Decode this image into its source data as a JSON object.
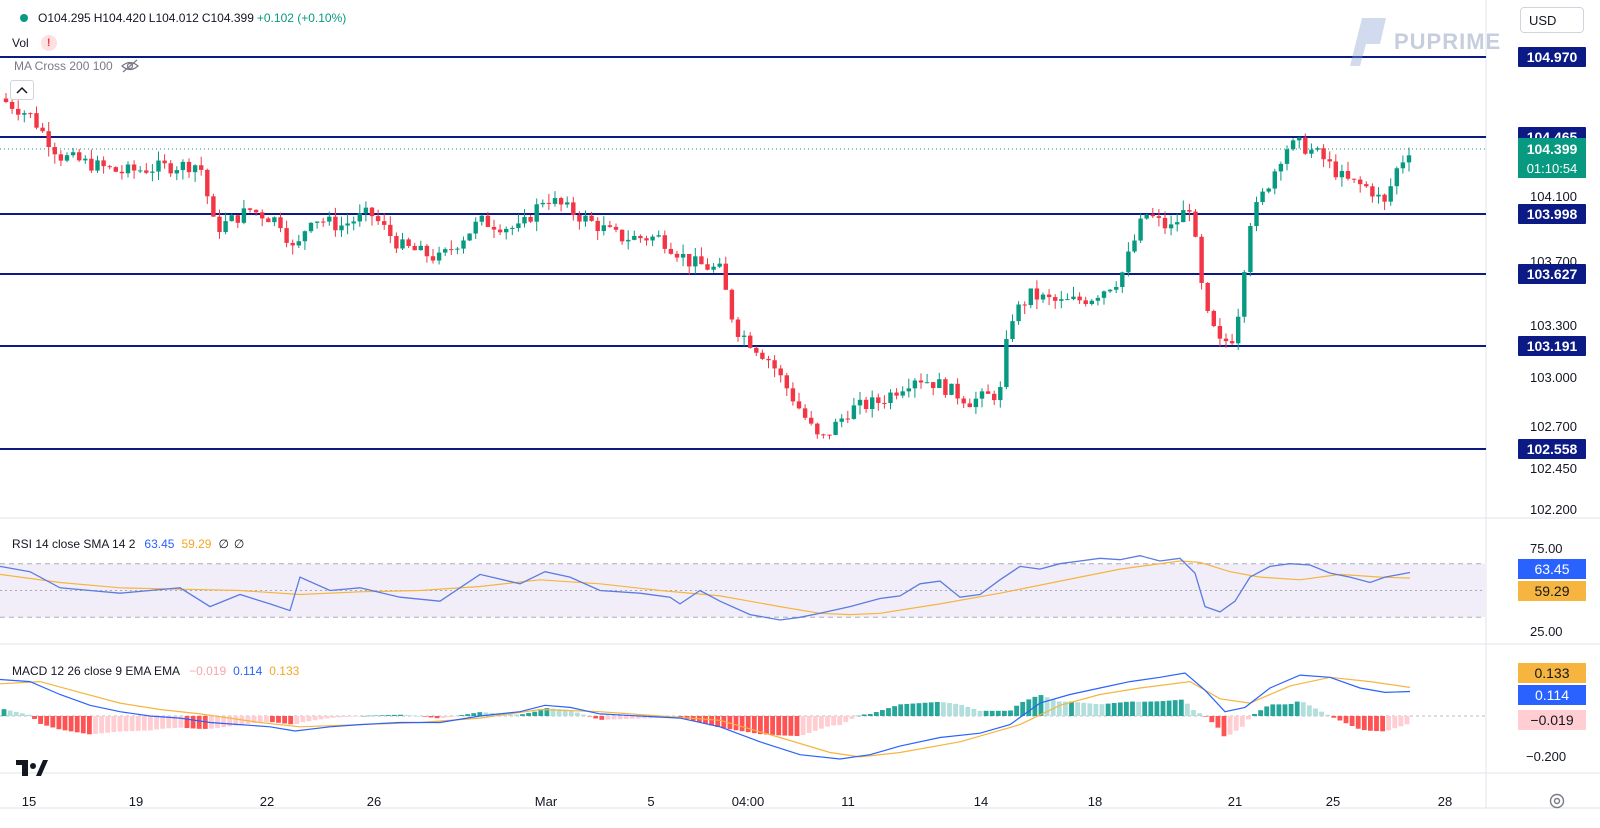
{
  "symbol_legend": {
    "open": "O104.295",
    "high": "H104.420",
    "low": "L104.012",
    "close": "C104.399",
    "change": "+0.102 (+0.10%)"
  },
  "vol_label": "Vol",
  "ma_label": "MA Cross 200 100",
  "rsi_legend": {
    "label": "RSI 14 close SMA 14 2",
    "rsi": "63.45",
    "sma": "59.29",
    "extra1": "∅",
    "extra2": "∅"
  },
  "macd_legend": {
    "label": "MACD 12 26 close 9 EMA EMA",
    "hist": "−0.019",
    "macd": "0.114",
    "signal": "0.133"
  },
  "currency": "USD",
  "watermark": "PUPRIME",
  "colors": {
    "up": "#089981",
    "down": "#f23645",
    "level_line": "#0b1a85",
    "level_label_bg": "#0b1a85",
    "price_label_bg": "#089981",
    "rsi_line": "#5b7be0",
    "rsi_sma": "#f5b53f",
    "macd_line": "#2962ff",
    "signal_line": "#f5b53f"
  },
  "chart_data": {
    "type": "candlestick",
    "y_ticks": [
      "104.100",
      "103.700",
      "103.300",
      "103.000",
      "102.700",
      "102.450",
      "102.200"
    ],
    "levels": [
      {
        "price": "104.970",
        "value": 104.97
      },
      {
        "price": "104.465",
        "value": 104.465
      },
      {
        "price": "103.998",
        "value": 103.998
      },
      {
        "price": "103.627",
        "value": 103.627
      },
      {
        "price": "103.191",
        "value": 103.191
      },
      {
        "price": "102.558",
        "value": 102.558
      }
    ],
    "current": {
      "price": "104.399",
      "value": 104.399,
      "countdown": "01:10:54"
    },
    "ylim": [
      102.2,
      105.0
    ],
    "x_labels": [
      "15",
      "19",
      "22",
      "26",
      "Mar",
      "5",
      "04:00",
      "11",
      "14",
      "18",
      "21",
      "25",
      "28"
    ],
    "price_path": [
      [
        0,
        104.7
      ],
      [
        30,
        104.6
      ],
      [
        60,
        104.35
      ],
      [
        90,
        104.3
      ],
      [
        120,
        104.25
      ],
      [
        160,
        104.28
      ],
      [
        200,
        104.3
      ],
      [
        215,
        103.9
      ],
      [
        250,
        104.02
      ],
      [
        280,
        103.95
      ],
      [
        295,
        103.75
      ],
      [
        310,
        103.98
      ],
      [
        340,
        103.92
      ],
      [
        370,
        104.0
      ],
      [
        400,
        103.8
      ],
      [
        440,
        103.72
      ],
      [
        480,
        103.95
      ],
      [
        520,
        103.9
      ],
      [
        545,
        104.1
      ],
      [
        580,
        103.98
      ],
      [
        620,
        103.85
      ],
      [
        660,
        103.85
      ],
      [
        690,
        103.7
      ],
      [
        720,
        103.65
      ],
      [
        735,
        103.3
      ],
      [
        770,
        103.1
      ],
      [
        790,
        102.9
      ],
      [
        820,
        102.6
      ],
      [
        850,
        102.8
      ],
      [
        880,
        102.85
      ],
      [
        915,
        103.0
      ],
      [
        940,
        102.95
      ],
      [
        970,
        102.85
      ],
      [
        1000,
        102.9
      ],
      [
        1010,
        103.35
      ],
      [
        1030,
        103.5
      ],
      [
        1060,
        103.45
      ],
      [
        1090,
        103.48
      ],
      [
        1120,
        103.6
      ],
      [
        1145,
        104.0
      ],
      [
        1170,
        103.9
      ],
      [
        1190,
        104.05
      ],
      [
        1205,
        103.4
      ],
      [
        1220,
        103.2
      ],
      [
        1235,
        103.25
      ],
      [
        1250,
        103.95
      ],
      [
        1270,
        104.2
      ],
      [
        1285,
        104.4
      ],
      [
        1300,
        104.42
      ],
      [
        1320,
        104.35
      ],
      [
        1345,
        104.2
      ],
      [
        1370,
        104.15
      ],
      [
        1385,
        104.05
      ],
      [
        1395,
        104.25
      ],
      [
        1410,
        104.399
      ]
    ],
    "rsi": {
      "ticks": [
        "75.00",
        "25.00"
      ],
      "current": "63.45",
      "sma_current": "59.29",
      "series": [
        [
          0,
          68
        ],
        [
          30,
          64
        ],
        [
          60,
          52
        ],
        [
          90,
          50
        ],
        [
          120,
          48
        ],
        [
          150,
          50
        ],
        [
          180,
          52
        ],
        [
          210,
          38
        ],
        [
          240,
          47
        ],
        [
          270,
          40
        ],
        [
          290,
          35
        ],
        [
          300,
          60
        ],
        [
          330,
          50
        ],
        [
          360,
          52
        ],
        [
          400,
          45
        ],
        [
          440,
          42
        ],
        [
          480,
          62
        ],
        [
          520,
          55
        ],
        [
          545,
          64
        ],
        [
          570,
          60
        ],
        [
          600,
          50
        ],
        [
          640,
          48
        ],
        [
          670,
          45
        ],
        [
          680,
          40
        ],
        [
          700,
          50
        ],
        [
          720,
          42
        ],
        [
          750,
          32
        ],
        [
          780,
          28
        ],
        [
          800,
          30
        ],
        [
          820,
          33
        ],
        [
          850,
          38
        ],
        [
          880,
          44
        ],
        [
          900,
          46
        ],
        [
          920,
          55
        ],
        [
          940,
          57
        ],
        [
          960,
          45
        ],
        [
          980,
          47
        ],
        [
          1000,
          58
        ],
        [
          1020,
          68
        ],
        [
          1040,
          66
        ],
        [
          1060,
          70
        ],
        [
          1080,
          72
        ],
        [
          1100,
          74
        ],
        [
          1120,
          73
        ],
        [
          1140,
          76
        ],
        [
          1160,
          72
        ],
        [
          1180,
          74
        ],
        [
          1195,
          63
        ],
        [
          1205,
          38
        ],
        [
          1220,
          34
        ],
        [
          1235,
          42
        ],
        [
          1250,
          60
        ],
        [
          1270,
          68
        ],
        [
          1290,
          70
        ],
        [
          1310,
          69
        ],
        [
          1330,
          63
        ],
        [
          1350,
          60
        ],
        [
          1370,
          56
        ],
        [
          1385,
          60
        ],
        [
          1400,
          62
        ],
        [
          1410,
          63.45
        ]
      ],
      "sma": [
        [
          0,
          62
        ],
        [
          60,
          56
        ],
        [
          120,
          52
        ],
        [
          180,
          51
        ],
        [
          240,
          50
        ],
        [
          300,
          47
        ],
        [
          360,
          49
        ],
        [
          420,
          50
        ],
        [
          480,
          53
        ],
        [
          540,
          58
        ],
        [
          600,
          55
        ],
        [
          660,
          50
        ],
        [
          720,
          46
        ],
        [
          780,
          38
        ],
        [
          820,
          33
        ],
        [
          850,
          32
        ],
        [
          880,
          33
        ],
        [
          940,
          40
        ],
        [
          1000,
          48
        ],
        [
          1060,
          57
        ],
        [
          1120,
          66
        ],
        [
          1180,
          72
        ],
        [
          1200,
          71
        ],
        [
          1230,
          64
        ],
        [
          1260,
          60
        ],
        [
          1300,
          58
        ],
        [
          1340,
          62
        ],
        [
          1380,
          60
        ],
        [
          1410,
          59.29
        ]
      ]
    },
    "macd": {
      "ticks": [
        "0.133",
        "0.114",
        "−0.019",
        "−0.200"
      ],
      "current_macd": "0.114",
      "current_signal": "0.133",
      "current_hist": "−0.019",
      "macd_series": [
        [
          0,
          0.17
        ],
        [
          30,
          0.16
        ],
        [
          60,
          0.1
        ],
        [
          90,
          0.05
        ],
        [
          120,
          0.02
        ],
        [
          150,
          0.0
        ],
        [
          180,
          -0.01
        ],
        [
          210,
          -0.03
        ],
        [
          240,
          -0.04
        ],
        [
          270,
          -0.05
        ],
        [
          295,
          -0.07
        ],
        [
          330,
          -0.05
        ],
        [
          360,
          -0.04
        ],
        [
          400,
          -0.03
        ],
        [
          440,
          -0.03
        ],
        [
          480,
          0.0
        ],
        [
          520,
          0.02
        ],
        [
          545,
          0.05
        ],
        [
          570,
          0.04
        ],
        [
          600,
          0.01
        ],
        [
          640,
          0.0
        ],
        [
          680,
          -0.01
        ],
        [
          720,
          -0.05
        ],
        [
          760,
          -0.12
        ],
        [
          800,
          -0.18
        ],
        [
          840,
          -0.2
        ],
        [
          870,
          -0.18
        ],
        [
          900,
          -0.14
        ],
        [
          940,
          -0.1
        ],
        [
          980,
          -0.08
        ],
        [
          1010,
          -0.04
        ],
        [
          1040,
          0.06
        ],
        [
          1070,
          0.1
        ],
        [
          1100,
          0.13
        ],
        [
          1130,
          0.16
        ],
        [
          1160,
          0.18
        ],
        [
          1185,
          0.2
        ],
        [
          1205,
          0.12
        ],
        [
          1225,
          0.02
        ],
        [
          1245,
          0.04
        ],
        [
          1270,
          0.13
        ],
        [
          1300,
          0.19
        ],
        [
          1330,
          0.18
        ],
        [
          1360,
          0.13
        ],
        [
          1385,
          0.11
        ],
        [
          1410,
          0.114
        ]
      ],
      "signal_series": [
        [
          0,
          0.15
        ],
        [
          40,
          0.16
        ],
        [
          80,
          0.11
        ],
        [
          120,
          0.06
        ],
        [
          160,
          0.03
        ],
        [
          200,
          0.01
        ],
        [
          260,
          -0.03
        ],
        [
          300,
          -0.05
        ],
        [
          360,
          -0.04
        ],
        [
          420,
          -0.03
        ],
        [
          480,
          -0.01
        ],
        [
          540,
          0.03
        ],
        [
          600,
          0.02
        ],
        [
          660,
          0.0
        ],
        [
          720,
          -0.02
        ],
        [
          780,
          -0.1
        ],
        [
          830,
          -0.17
        ],
        [
          860,
          -0.19
        ],
        [
          900,
          -0.17
        ],
        [
          960,
          -0.12
        ],
        [
          1020,
          -0.04
        ],
        [
          1060,
          0.05
        ],
        [
          1100,
          0.1
        ],
        [
          1140,
          0.13
        ],
        [
          1190,
          0.16
        ],
        [
          1220,
          0.08
        ],
        [
          1250,
          0.06
        ],
        [
          1290,
          0.14
        ],
        [
          1330,
          0.18
        ],
        [
          1370,
          0.16
        ],
        [
          1410,
          0.133
        ]
      ],
      "ylim": [
        -0.25,
        0.25
      ]
    }
  }
}
